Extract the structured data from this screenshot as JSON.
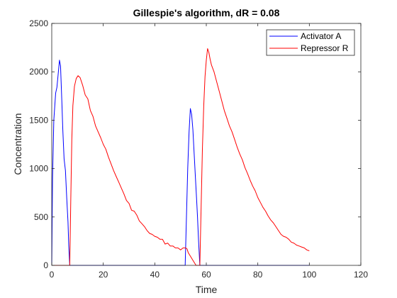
{
  "chart_data": {
    "type": "line",
    "title": "Gillespie's algorithm, dR = 0.08",
    "xlabel": "Time",
    "ylabel": "Concentration",
    "xlim": [
      0,
      120
    ],
    "ylim": [
      0,
      2500
    ],
    "xticks": [
      0,
      20,
      40,
      60,
      80,
      100,
      120
    ],
    "yticks": [
      0,
      500,
      1000,
      1500,
      2000,
      2500
    ],
    "grid": false,
    "legend_position": "top-right",
    "series": [
      {
        "name": "Activator A",
        "color": "#0000ff",
        "x": [
          0,
          0.3,
          0.8,
          1.5,
          2.0,
          2.5,
          3.0,
          3.4,
          3.9,
          4.3,
          4.8,
          5.3,
          5.8,
          6.3,
          6.6,
          7.0,
          10,
          20,
          30,
          40,
          50,
          51.8,
          52.3,
          52.8,
          53.3,
          53.8,
          54.3,
          54.8,
          55.3,
          55.8,
          56.2,
          56.6,
          57.0,
          57.5,
          60,
          70,
          80,
          90,
          100
        ],
        "y": [
          0,
          900,
          1500,
          1780,
          1840,
          1980,
          2120,
          2060,
          1700,
          1400,
          1100,
          980,
          700,
          450,
          200,
          0,
          0,
          0,
          0,
          0,
          0,
          0,
          500,
          1000,
          1380,
          1620,
          1560,
          1400,
          1150,
          900,
          700,
          500,
          250,
          0,
          0,
          0,
          0,
          0,
          0
        ]
      },
      {
        "name": "Repressor R",
        "color": "#ff0000",
        "x": [
          0,
          7.0,
          7.4,
          7.8,
          8.2,
          8.8,
          9.5,
          10.2,
          11,
          12,
          13,
          14,
          15,
          16,
          17,
          18,
          19,
          20,
          21,
          22,
          23,
          24,
          25,
          26,
          27,
          28,
          29,
          30,
          31,
          32,
          33,
          34,
          35,
          36,
          37,
          38,
          39,
          40,
          41,
          42,
          43,
          44,
          45,
          46,
          47,
          48,
          49,
          50,
          51,
          52,
          52.5,
          53,
          56,
          57.5,
          58.0,
          58.5,
          59.0,
          59.5,
          60.0,
          60.5,
          61.0,
          61.5,
          62.0,
          63,
          64,
          65,
          66,
          67,
          68,
          69,
          70,
          71,
          72,
          73,
          74,
          75,
          76,
          77,
          78,
          79,
          80,
          81,
          82,
          83,
          84,
          85,
          86,
          87,
          88,
          89,
          90,
          91,
          92,
          93,
          94,
          95,
          96,
          97,
          98,
          99,
          100
        ],
        "y": [
          0,
          0,
          700,
          1300,
          1650,
          1850,
          1930,
          1960,
          1940,
          1860,
          1760,
          1720,
          1600,
          1540,
          1440,
          1380,
          1320,
          1250,
          1200,
          1120,
          1050,
          980,
          920,
          860,
          800,
          740,
          670,
          640,
          570,
          560,
          520,
          460,
          430,
          400,
          360,
          330,
          320,
          300,
          290,
          270,
          270,
          220,
          230,
          200,
          200,
          180,
          180,
          160,
          180,
          180,
          170,
          130,
          0,
          0,
          600,
          1200,
          1650,
          1950,
          2120,
          2240,
          2200,
          2130,
          2070,
          2000,
          1900,
          1800,
          1700,
          1600,
          1520,
          1440,
          1380,
          1300,
          1220,
          1150,
          1090,
          1010,
          950,
          880,
          820,
          770,
          700,
          650,
          600,
          560,
          510,
          470,
          440,
          400,
          360,
          320,
          300,
          290,
          270,
          240,
          230,
          210,
          200,
          190,
          180,
          160,
          150
        ]
      }
    ]
  }
}
